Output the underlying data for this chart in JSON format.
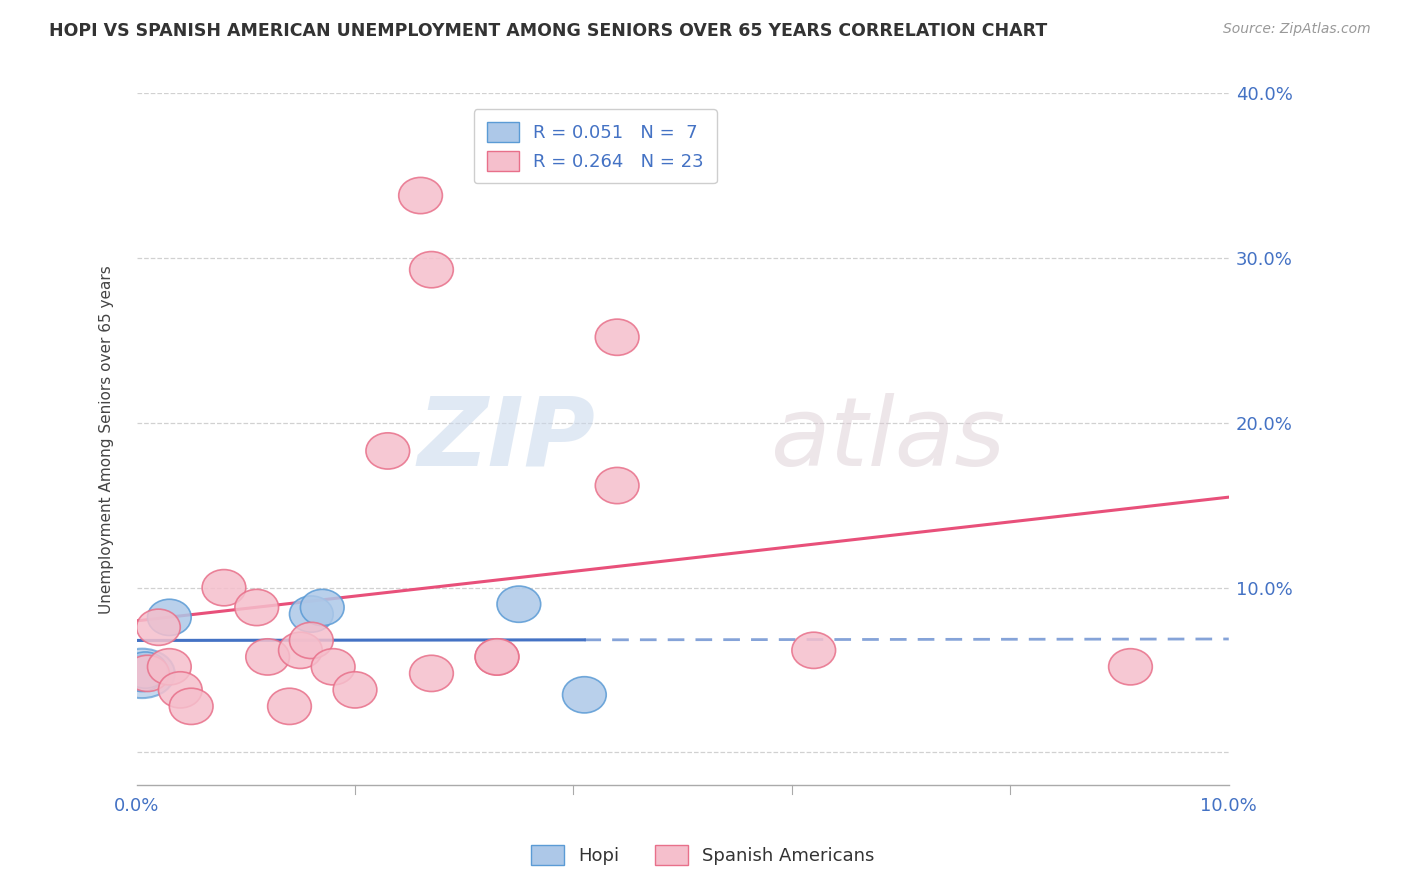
{
  "title": "HOPI VS SPANISH AMERICAN UNEMPLOYMENT AMONG SENIORS OVER 65 YEARS CORRELATION CHART",
  "source": "Source: ZipAtlas.com",
  "ylabel": "Unemployment Among Seniors over 65 years",
  "xlim": [
    0.0,
    0.1
  ],
  "ylim": [
    -0.02,
    0.4
  ],
  "xticks": [
    0.0,
    0.02,
    0.04,
    0.06,
    0.08,
    0.1
  ],
  "yticks": [
    0.0,
    0.1,
    0.2,
    0.3,
    0.4
  ],
  "hopi_color": "#adc8e8",
  "hopi_edge_color": "#5b9bd5",
  "spanish_color": "#f5bfcc",
  "spanish_edge_color": "#e8708a",
  "hopi_line_color": "#4472c4",
  "spanish_line_color": "#e8507a",
  "hopi_x": [
    0.0005,
    0.0008,
    0.003,
    0.016,
    0.017,
    0.035,
    0.041
  ],
  "hopi_y": [
    0.048,
    0.05,
    0.082,
    0.084,
    0.088,
    0.09,
    0.035
  ],
  "spanish_x": [
    0.001,
    0.002,
    0.003,
    0.004,
    0.005,
    0.008,
    0.011,
    0.012,
    0.014,
    0.015,
    0.016,
    0.018,
    0.02,
    0.023,
    0.026,
    0.027,
    0.027,
    0.033,
    0.033,
    0.044,
    0.044,
    0.062,
    0.091
  ],
  "spanish_y": [
    0.048,
    0.076,
    0.052,
    0.038,
    0.028,
    0.1,
    0.088,
    0.058,
    0.028,
    0.062,
    0.068,
    0.052,
    0.038,
    0.183,
    0.338,
    0.293,
    0.048,
    0.058,
    0.058,
    0.162,
    0.252,
    0.062,
    0.052
  ],
  "hopi_R": 0.051,
  "hopi_N": 7,
  "spanish_R": 0.264,
  "spanish_N": 23,
  "watermark_zip": "ZIP",
  "watermark_atlas": "atlas",
  "background_color": "#ffffff",
  "grid_color": "#cccccc",
  "tick_label_color": "#4472c4",
  "label_color": "#555555"
}
